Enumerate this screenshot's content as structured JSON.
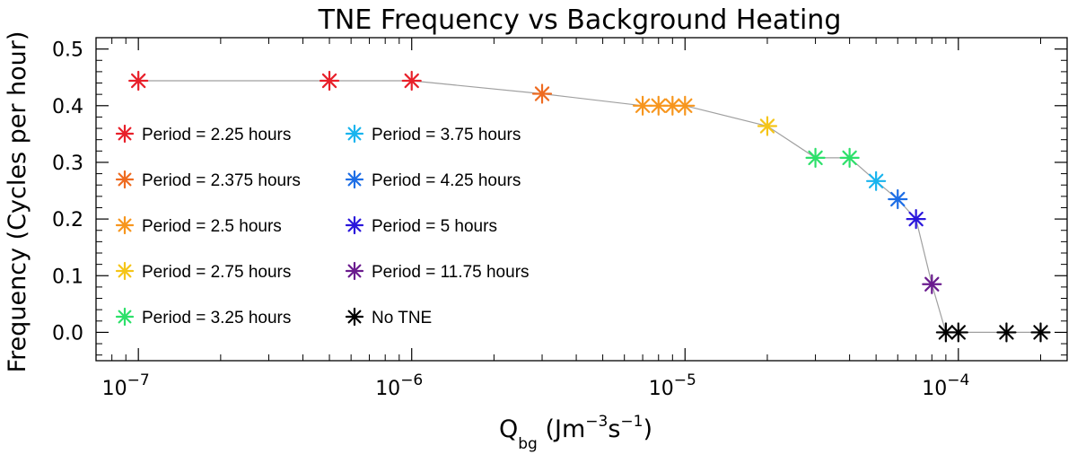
{
  "chart_data": {
    "type": "scatter",
    "title": "TNE Frequency vs Background Heating",
    "xlabel": "Q_bg (Jm^-3s^-1)",
    "xlabel_parts": {
      "main": "Q",
      "subscript": "bg",
      "unit_open": " (Jm",
      "exp1": "−3",
      "unit_mid": "s",
      "exp2": "−1",
      "unit_close": ")"
    },
    "ylabel": "Frequency (Cycles per hour)",
    "x_scale": "log",
    "xlim": [
      7e-08,
      0.00025
    ],
    "ylim": [
      -0.05,
      0.52
    ],
    "x_ticks": [
      {
        "value": 1e-07,
        "base": "10",
        "exp": "−7"
      },
      {
        "value": 1e-06,
        "base": "10",
        "exp": "−6"
      },
      {
        "value": 1e-05,
        "base": "10",
        "exp": "−5"
      },
      {
        "value": 0.0001,
        "base": "10",
        "exp": "−4"
      }
    ],
    "y_ticks": [
      {
        "value": 0.0,
        "label": "0.0"
      },
      {
        "value": 0.1,
        "label": "0.1"
      },
      {
        "value": 0.2,
        "label": "0.2"
      },
      {
        "value": 0.3,
        "label": "0.3"
      },
      {
        "value": 0.4,
        "label": "0.4"
      },
      {
        "value": 0.5,
        "label": "0.5"
      }
    ],
    "grid": false,
    "line_color": "#a0a0a0",
    "legend_position": "left",
    "series": [
      {
        "name": "Period = 2.25 hours",
        "color": "#e8202a",
        "points": [
          [
            1e-07,
            0.444
          ],
          [
            5e-07,
            0.444
          ],
          [
            1e-06,
            0.444
          ]
        ]
      },
      {
        "name": "Period = 2.375 hours",
        "color": "#ee6b20",
        "points": [
          [
            3e-06,
            0.421
          ]
        ]
      },
      {
        "name": "Period = 2.5 hours",
        "color": "#f7961e",
        "points": [
          [
            7e-06,
            0.4
          ],
          [
            8e-06,
            0.4
          ],
          [
            9e-06,
            0.4
          ],
          [
            1e-05,
            0.4
          ]
        ]
      },
      {
        "name": "Period = 2.75 hours",
        "color": "#f5c518",
        "points": [
          [
            2e-05,
            0.364
          ]
        ]
      },
      {
        "name": "Period = 3.25 hours",
        "color": "#2de06a",
        "points": [
          [
            3e-05,
            0.308
          ],
          [
            4e-05,
            0.308
          ]
        ]
      },
      {
        "name": "Period = 3.75 hours",
        "color": "#19b4ee",
        "points": [
          [
            5e-05,
            0.267
          ]
        ]
      },
      {
        "name": "Period = 4.25 hours",
        "color": "#1d6ee6",
        "points": [
          [
            6e-05,
            0.235
          ]
        ]
      },
      {
        "name": "Period = 5 hours",
        "color": "#2a16dc",
        "points": [
          [
            7e-05,
            0.2
          ]
        ]
      },
      {
        "name": "Period = 11.75 hours",
        "color": "#6a1b8e",
        "points": [
          [
            8e-05,
            0.085
          ]
        ]
      },
      {
        "name": "No TNE",
        "color": "#000000",
        "points": [
          [
            9e-05,
            0.0
          ],
          [
            0.0001,
            0.0
          ],
          [
            0.00015,
            0.0
          ],
          [
            0.0002,
            0.0
          ]
        ]
      }
    ]
  }
}
